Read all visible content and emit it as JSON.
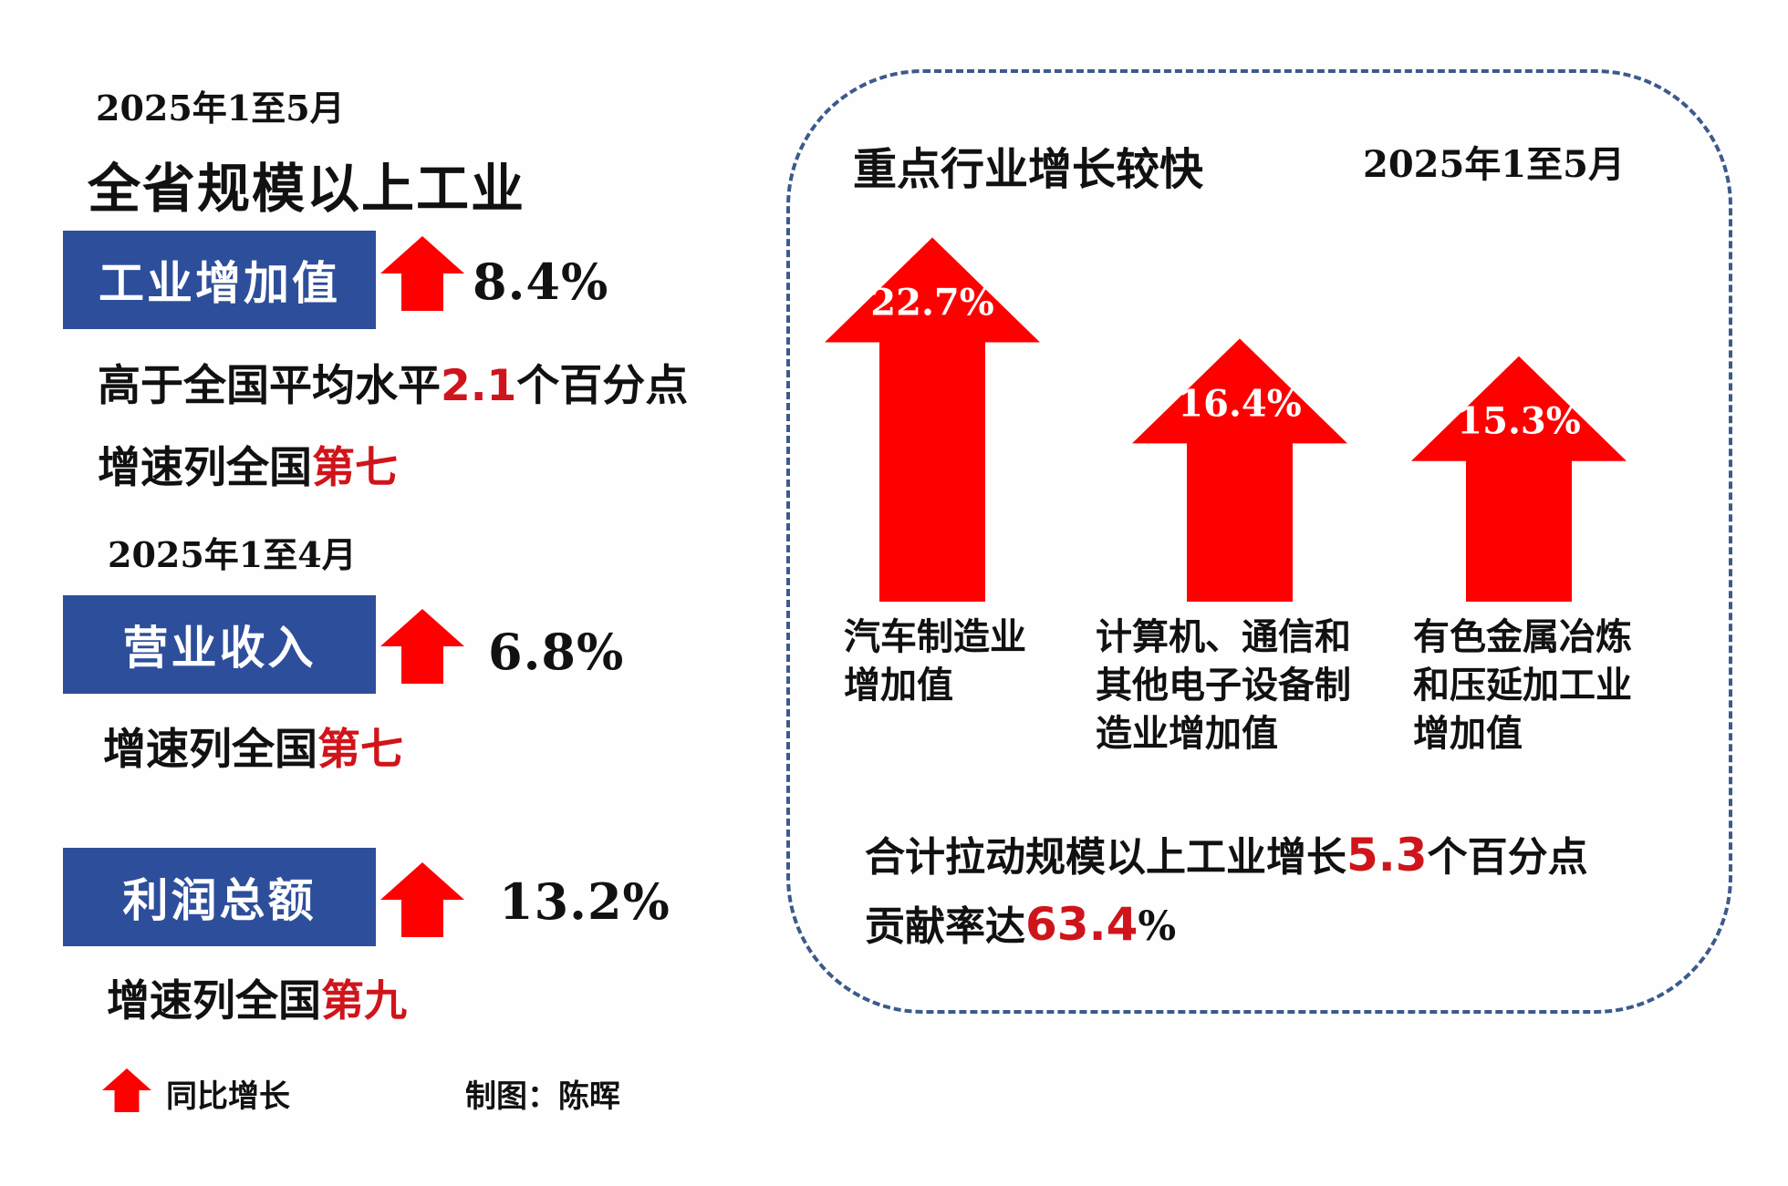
{
  "left": {
    "date_top": "2025年1至5月",
    "title": "全省规模以上工业",
    "industry_value": {
      "label": "工业增加值",
      "growth": "8.4%",
      "note1_pre": "高于全国平均水平",
      "note1_num": "2.1",
      "note1_post": "个百分点",
      "rank_pre": "增速列全国",
      "rank": "第七"
    },
    "date_mid": "2025年1至4月",
    "revenue": {
      "label": "营业收入",
      "growth": "6.8%",
      "rank_pre": "增速列全国",
      "rank": "第七"
    },
    "profit": {
      "label": "利润总额",
      "growth": "13.2%",
      "rank_pre": "增速列全国",
      "rank": "第九"
    }
  },
  "legend": {
    "text": "同比增长",
    "author": "制图：陈晖"
  },
  "panel": {
    "title": "重点行业增长较快",
    "date": "2025年1至5月",
    "total_pre": "合计拉动规模以上工业增长",
    "total_num": "5.3",
    "total_post": "个百分点",
    "contrib_pre": "贡献率达",
    "contrib_num": "63.4",
    "contrib_post": "%"
  },
  "colors": {
    "arrow_red": "#ff0000",
    "badge_blue": "#2d4e9b",
    "highlight_red": "#d0141b",
    "panel_border": "#3c5a8c"
  },
  "chart_data": {
    "type": "bar",
    "title": "重点行业增长较快",
    "categories": [
      "汽车制造业增加值",
      "计算机、通信和其他电子设备制造业增加值",
      "有色金属冶炼和压延加工业增加值"
    ],
    "values": [
      22.7,
      16.4,
      15.3
    ],
    "value_labels": [
      "22.7%",
      "16.4%",
      "15.3%"
    ],
    "label_lines": [
      [
        "汽车制造业",
        "增加值"
      ],
      [
        "计算机、通信和",
        "其他电子设备制",
        "造业增加值"
      ],
      [
        "有色金属冶炼",
        "和压延加工业",
        "增加值"
      ]
    ],
    "unit": "%",
    "grid": false,
    "legend": "none"
  }
}
